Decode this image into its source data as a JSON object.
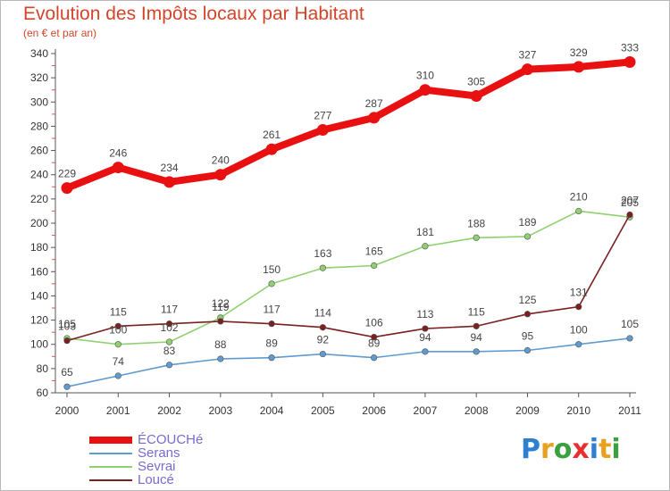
{
  "header": {
    "title": "Evolution des Impôts locaux par Habitant",
    "subtitle": "(en € et par an)"
  },
  "logo": {
    "text": "Proxiti",
    "colors": [
      "#2f7fd0",
      "#e8a020",
      "#3aa040",
      "#e83030",
      "#2f7fd0",
      "#e8a020",
      "#3aa040"
    ]
  },
  "chart_data": {
    "type": "line",
    "x": [
      2000,
      2001,
      2002,
      2003,
      2004,
      2005,
      2006,
      2007,
      2008,
      2009,
      2010,
      2011
    ],
    "ylim": [
      60,
      340
    ],
    "yticks": [
      60,
      80,
      100,
      120,
      140,
      160,
      180,
      200,
      220,
      240,
      260,
      280,
      300,
      320,
      340
    ],
    "grid": false,
    "legend_position": "bottom-left",
    "series": [
      {
        "name": "ÉCOUCHé",
        "color": "#e81010",
        "values": [
          229,
          246,
          234,
          240,
          261,
          277,
          287,
          310,
          305,
          327,
          329,
          333
        ],
        "labels": [
          "229",
          "246",
          "234",
          "240",
          "261",
          "277",
          "287",
          "310",
          "305",
          "327",
          "329",
          "333"
        ]
      },
      {
        "name": "Serans",
        "color": "#5f9bd0",
        "values": [
          65,
          74,
          83,
          88,
          89,
          92,
          89,
          94,
          94,
          95,
          100,
          105
        ],
        "labels": [
          "65",
          "74",
          "83",
          "88",
          "89",
          "92",
          "89",
          "94",
          "94",
          "95",
          "100",
          "105"
        ]
      },
      {
        "name": "Sevrai",
        "color": "#90d070",
        "values": [
          105,
          100,
          102,
          122,
          150,
          163,
          165,
          181,
          188,
          189,
          210,
          205
        ],
        "labels": [
          "105",
          "100",
          "102",
          "122",
          "150",
          "163",
          "165",
          "181",
          "188",
          "189",
          "210",
          "205"
        ]
      },
      {
        "name": "Loucé",
        "color": "#7a2020",
        "values": [
          103,
          115,
          117,
          119,
          117,
          114,
          106,
          113,
          115,
          125,
          131,
          207
        ],
        "labels": [
          "103",
          "115",
          "117",
          "119",
          "117",
          "114",
          "106",
          "113",
          "115",
          "125",
          "131",
          "207"
        ]
      }
    ]
  }
}
